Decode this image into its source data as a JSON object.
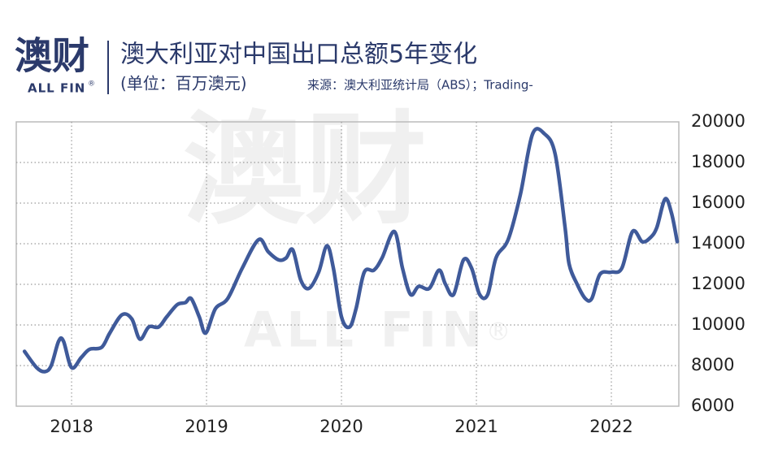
{
  "logo": {
    "name": "澳财",
    "sub": "ALL FIN",
    "mark": "®"
  },
  "watermark": {
    "name": "澳财",
    "sub": "ALL FIN",
    "mark": "®"
  },
  "chart_data": {
    "type": "line",
    "title": "澳大利亚对中国出口总额5年变化",
    "subtitle": "(单位：百万澳元)",
    "source": "来源：澳大利亚统计局（ABS）；Trading-",
    "xlim": [
      2017.59,
      2022.5
    ],
    "xticks": [
      2018,
      2019,
      2020,
      2021,
      2022
    ],
    "ylim": [
      6000,
      20000
    ],
    "yticks": [
      6000,
      8000,
      10000,
      12000,
      14000,
      16000,
      18000,
      20000
    ],
    "grid": true,
    "series": [
      {
        "color": "#3f5a9a",
        "x": [
          2017.651,
          2017.741,
          2017.801,
          2017.849,
          2017.904,
          2017.94,
          2018.0,
          2018.072,
          2018.133,
          2018.223,
          2018.283,
          2018.373,
          2018.446,
          2018.506,
          2018.572,
          2018.645,
          2018.705,
          2018.783,
          2018.843,
          2018.886,
          2018.946,
          2018.994,
          2019.066,
          2019.157,
          2019.265,
          2019.386,
          2019.458,
          2019.536,
          2019.59,
          2019.639,
          2019.699,
          2019.759,
          2019.831,
          2019.892,
          2019.94,
          2020.0,
          2020.06,
          2020.108,
          2020.169,
          2020.241,
          2020.301,
          2020.392,
          2020.452,
          2020.512,
          2020.572,
          2020.651,
          2020.723,
          2020.771,
          2020.831,
          2020.904,
          2020.964,
          2021.024,
          2021.084,
          2021.145,
          2021.235,
          2021.325,
          2021.416,
          2021.506,
          2021.584,
          2021.657,
          2021.687,
          2021.747,
          2021.807,
          2021.855,
          2021.916,
          2022.0,
          2022.078,
          2022.157,
          2022.229,
          2022.289,
          2022.337,
          2022.398,
          2022.446,
          2022.488
        ],
        "values": [
          8700,
          7900,
          7700,
          8000,
          9200,
          9200,
          7900,
          8400,
          8800,
          8900,
          9600,
          10500,
          10300,
          9300,
          9900,
          9900,
          10400,
          11000,
          11100,
          11300,
          10400,
          9600,
          10800,
          11300,
          12800,
          14200,
          13600,
          13200,
          13300,
          13700,
          12200,
          11800,
          12600,
          13900,
          12800,
          10400,
          9900,
          10800,
          12600,
          12700,
          13300,
          14600,
          12800,
          11500,
          11900,
          11800,
          12700,
          12000,
          11500,
          13200,
          12800,
          11500,
          11500,
          13300,
          14200,
          16400,
          19400,
          19400,
          18400,
          14800,
          13000,
          12000,
          11300,
          11300,
          12500,
          12600,
          12800,
          14600,
          14100,
          14300,
          14800,
          16200,
          15500,
          14100
        ]
      }
    ]
  }
}
